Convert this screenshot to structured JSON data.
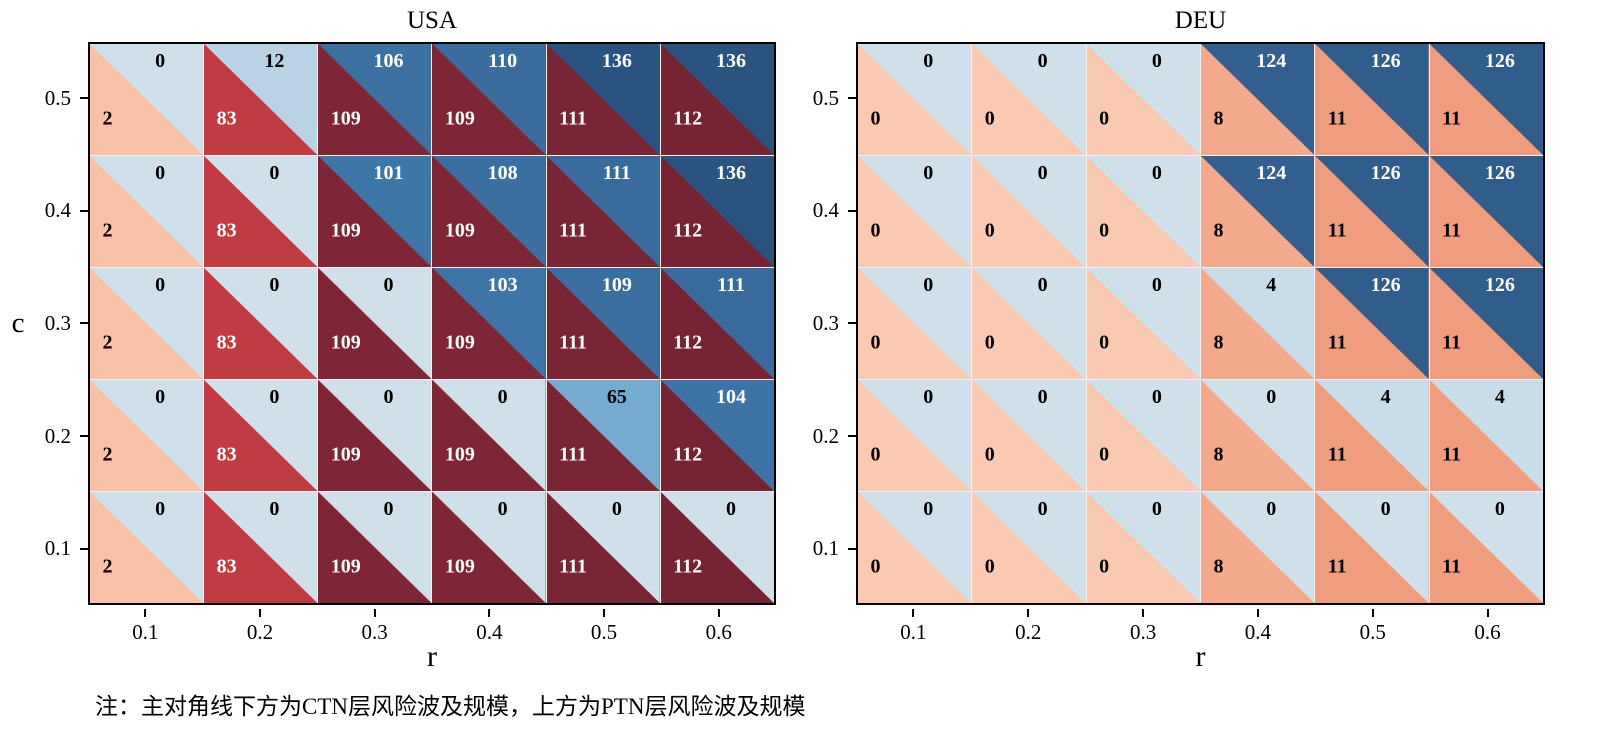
{
  "note": "注：主对角线下方为CTN层风险波及规模，上方为PTN层风险波及规模",
  "chart_data": [
    {
      "type": "heatmap",
      "title": "USA",
      "xlabel": "r",
      "ylabel": "c",
      "x_ticks": [
        "0.1",
        "0.2",
        "0.3",
        "0.4",
        "0.5",
        "0.6"
      ],
      "y_ticks": [
        "0.5",
        "0.4",
        "0.3",
        "0.2",
        "0.1"
      ],
      "series": [
        {
          "name": "PTN层风险波及规模 (upper triangle)",
          "values": [
            [
              0,
              12,
              106,
              110,
              136,
              136
            ],
            [
              0,
              0,
              101,
              108,
              111,
              136
            ],
            [
              0,
              0,
              0,
              103,
              109,
              111
            ],
            [
              0,
              0,
              0,
              0,
              65,
              104
            ],
            [
              0,
              0,
              0,
              0,
              0,
              0
            ]
          ]
        },
        {
          "name": "CTN层风险波及规模 (lower triangle)",
          "values": [
            [
              2,
              83,
              109,
              109,
              111,
              112
            ],
            [
              2,
              83,
              109,
              109,
              111,
              112
            ],
            [
              2,
              83,
              109,
              109,
              111,
              112
            ],
            [
              2,
              83,
              109,
              109,
              111,
              112
            ],
            [
              2,
              83,
              109,
              109,
              111,
              112
            ]
          ]
        }
      ]
    },
    {
      "type": "heatmap",
      "title": "DEU",
      "xlabel": "r",
      "ylabel": "c",
      "x_ticks": [
        "0.1",
        "0.2",
        "0.3",
        "0.4",
        "0.5",
        "0.6"
      ],
      "y_ticks": [
        "0.5",
        "0.4",
        "0.3",
        "0.2",
        "0.1"
      ],
      "series": [
        {
          "name": "PTN层风险波及规模 (upper triangle)",
          "values": [
            [
              0,
              0,
              0,
              124,
              126,
              126
            ],
            [
              0,
              0,
              0,
              124,
              126,
              126
            ],
            [
              0,
              0,
              0,
              4,
              126,
              126
            ],
            [
              0,
              0,
              0,
              0,
              4,
              4
            ],
            [
              0,
              0,
              0,
              0,
              0,
              0
            ]
          ]
        },
        {
          "name": "CTN层风险波及规模 (lower triangle)",
          "values": [
            [
              0,
              0,
              0,
              8,
              11,
              11
            ],
            [
              0,
              0,
              0,
              8,
              11,
              11
            ],
            [
              0,
              0,
              0,
              8,
              11,
              11
            ],
            [
              0,
              0,
              0,
              8,
              11,
              11
            ],
            [
              0,
              0,
              0,
              8,
              11,
              11
            ]
          ]
        }
      ]
    }
  ],
  "colors": {
    "ctn_red_stops": [
      [
        0,
        "#fac9b1"
      ],
      [
        11,
        "#ef9d7e"
      ],
      [
        83,
        "#c13b44"
      ],
      [
        112,
        "#762434"
      ]
    ],
    "ptn_blue_stops": [
      [
        0,
        "#cfe0eb"
      ],
      [
        12,
        "#b9d3e5"
      ],
      [
        65,
        "#76abd0"
      ],
      [
        101,
        "#3f76a8"
      ],
      [
        136,
        "#2b5380"
      ]
    ],
    "axis": "#000000",
    "text_light": "#ffffff",
    "text_dark": "#000000"
  }
}
